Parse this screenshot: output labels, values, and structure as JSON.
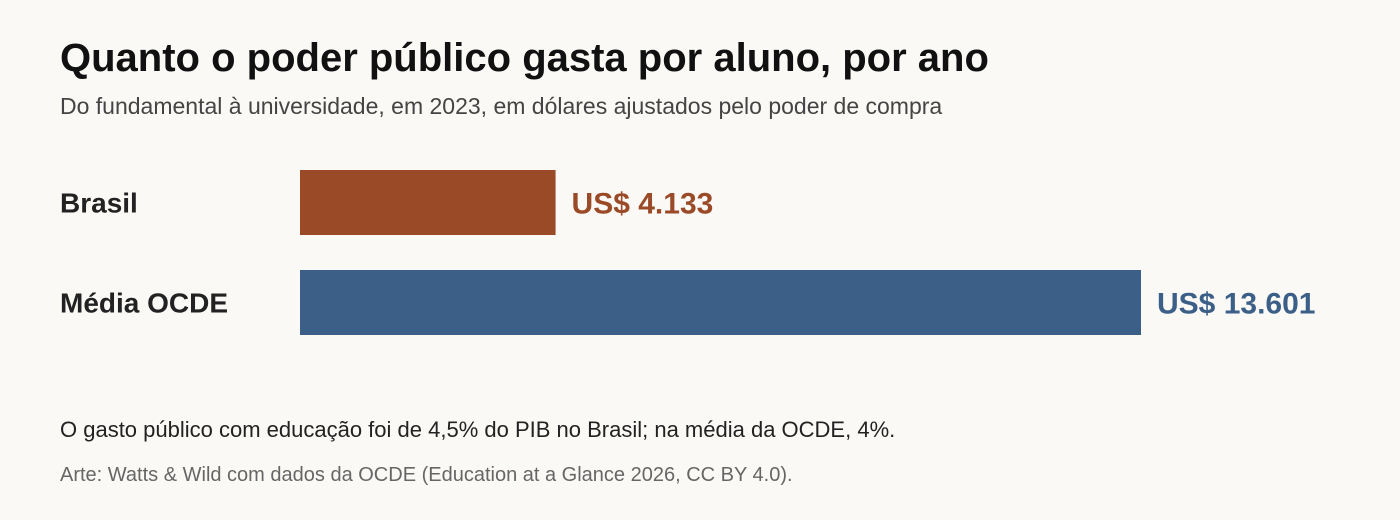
{
  "header": {
    "title": "Quanto o poder público gasta por aluno, por ano",
    "subtitle": "Do fundamental à universidade, em 2023, em dólares ajustados pelo poder de compra"
  },
  "footer": {
    "note": "O gasto público com educação foi de 4,5% do PIB no Brasil; na média da OCDE, 4%.",
    "source": "Arte: Watts & Wild com dados da OCDE (Education at a Glance 2026, CC BY 4.0)."
  },
  "chart_data": {
    "type": "bar",
    "orientation": "horizontal",
    "title": "Quanto o poder público gasta por aluno, por ano",
    "subtitle": "Do fundamental à universidade, em 2023, em dólares ajustados pelo poder de compra",
    "categories": [
      "Brasil",
      "Média OCDE"
    ],
    "values": [
      4133,
      13601
    ],
    "value_labels": [
      "US$ 4.133",
      "US$ 13.601"
    ],
    "colors": [
      "#9a4a26",
      "#3b5f87"
    ],
    "xlim": [
      0,
      13601
    ],
    "grid": false,
    "legend": "none",
    "xlabel": "",
    "ylabel": ""
  }
}
